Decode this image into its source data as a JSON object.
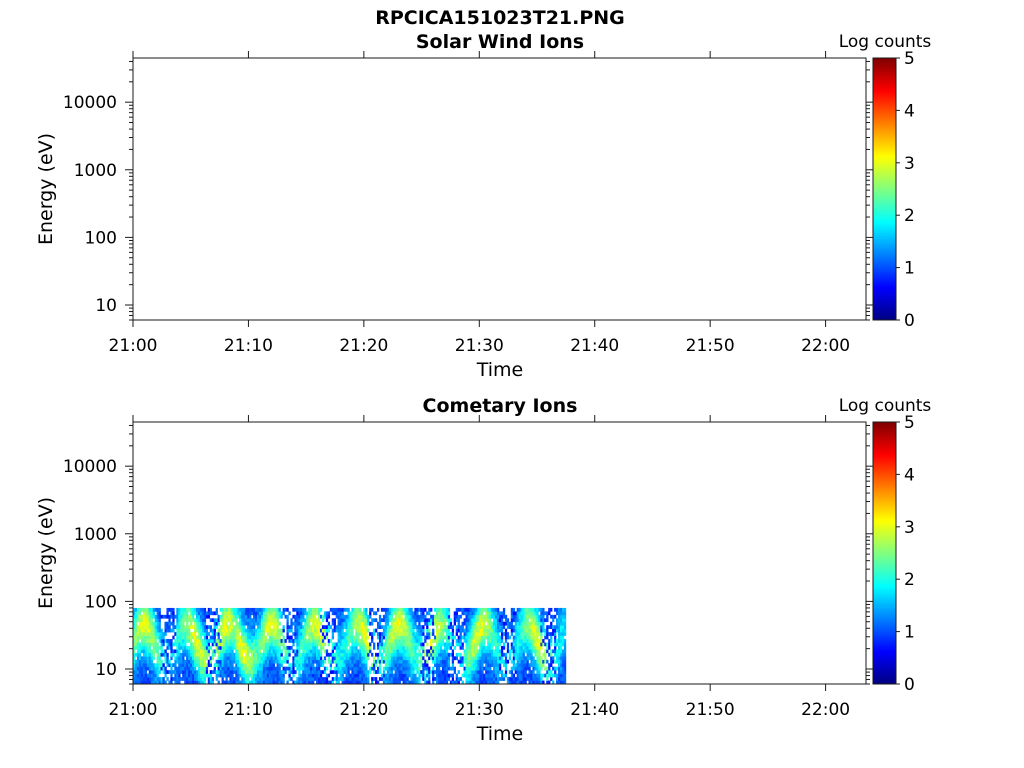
{
  "figure": {
    "title": "RPCICA151023T21.PNG"
  },
  "colors": {
    "colormap": [
      "#000080",
      "#0000ff",
      "#0080ff",
      "#00ffff",
      "#80ff80",
      "#ffff00",
      "#ff8000",
      "#ff0000",
      "#800000"
    ],
    "axis": "#1a1a1a",
    "background": "#ffffff"
  },
  "chart_data": [
    {
      "type": "heatmap",
      "title": "Solar Wind Ions",
      "xlabel": "Time",
      "ylabel": "Energy (eV)",
      "x_tick_labels": [
        "21:00",
        "21:10",
        "21:20",
        "21:30",
        "21:40",
        "21:50",
        "22:00"
      ],
      "x_tick_minutes": [
        0,
        10,
        20,
        30,
        40,
        50,
        60
      ],
      "xlim_minutes": [
        0,
        63.5
      ],
      "y_scale": "log",
      "y_tick_labels": [
        "10",
        "100",
        "1000",
        "10000"
      ],
      "y_tick_values": [
        10,
        100,
        1000,
        10000
      ],
      "ylim": [
        6,
        45000
      ],
      "colorbar": {
        "label": "Log counts",
        "ticks": [
          "0",
          "1",
          "2",
          "3",
          "4",
          "5"
        ],
        "range": [
          0,
          5
        ]
      },
      "data": {
        "time_range_minutes": [],
        "energy_range_eV": [],
        "description": ""
      }
    },
    {
      "type": "heatmap",
      "title": "Cometary Ions",
      "xlabel": "Time",
      "ylabel": "Energy (eV)",
      "x_tick_labels": [
        "21:00",
        "21:10",
        "21:20",
        "21:30",
        "21:40",
        "21:50",
        "22:00"
      ],
      "x_tick_minutes": [
        0,
        10,
        20,
        30,
        40,
        50,
        60
      ],
      "xlim_minutes": [
        0,
        63.5
      ],
      "y_scale": "log",
      "y_tick_labels": [
        "10",
        "100",
        "1000",
        "10000"
      ],
      "y_tick_values": [
        10,
        100,
        1000,
        10000
      ],
      "ylim": [
        6,
        45000
      ],
      "colorbar": {
        "label": "Log counts",
        "ticks": [
          "0",
          "1",
          "2",
          "3",
          "4",
          "5"
        ],
        "range": [
          0,
          5
        ]
      },
      "data": {
        "time_range_minutes": [
          0,
          37.5
        ],
        "energy_range_eV": [
          6,
          80
        ],
        "typical_log_counts": [
          1,
          3
        ],
        "bright_time_minutes": [
          1,
          5.5,
          8,
          9.5,
          12,
          16,
          20,
          23,
          26,
          30,
          35
        ],
        "gap_time_minutes": [
          3,
          7,
          13.5,
          17,
          21,
          25.5,
          28,
          32.5,
          36
        ]
      }
    }
  ]
}
